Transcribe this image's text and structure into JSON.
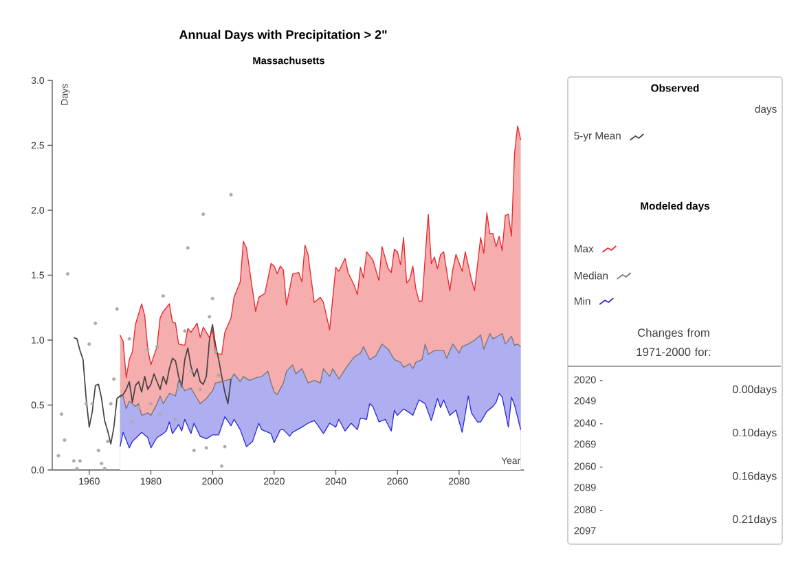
{
  "chart_data": {
    "type": "area",
    "title": "Annual Days with Precipitation > 2\"",
    "subtitle": "Massachusetts",
    "xlabel": "Year",
    "ylabel": "Days",
    "xlim": [
      1948,
      2101
    ],
    "xticks": [
      1960,
      1980,
      2000,
      2020,
      2040,
      2060,
      2080
    ],
    "ylim": [
      0,
      3
    ],
    "yticks": [
      {
        "value": 0,
        "label": "0.0"
      },
      {
        "value": 0.5,
        "label": "0.5"
      },
      {
        "value": 1,
        "label": "1.0"
      },
      {
        "value": 1.5,
        "label": "1.5"
      },
      {
        "value": 2,
        "label": "2.0"
      },
      {
        "value": 2.5,
        "label": "2.5"
      },
      {
        "value": 3,
        "label": "3.0"
      }
    ],
    "legend": "right",
    "annotations": [
      "Observed",
      "days",
      "Modeled days",
      "Changes from 1971-2000 for:",
      "2020 - 2049",
      "0.00days",
      "2040 - 2069",
      "0.10days",
      "2060 - 2089",
      "0.16days",
      "2080 - 2097",
      "0.21days"
    ],
    "series": [
      {
        "type": "scatter",
        "marker": "circle",
        "color": "#aaaaaa",
        "x": [
          1950,
          1951,
          1952,
          1953,
          1955,
          1956,
          1957,
          1959,
          1960,
          1961,
          1962,
          1963,
          1964,
          1965,
          1966,
          1967,
          1968,
          1969,
          1973,
          1974,
          1976,
          1979,
          1980,
          1982,
          1983,
          1984,
          1988,
          1989,
          1991,
          1992,
          1993,
          1994,
          1996,
          1997,
          1998,
          1999,
          2000,
          2001,
          2002,
          2003,
          2004,
          2006
        ],
        "values": [
          0.11,
          0.43,
          0.23,
          1.51,
          0.07,
          0.01,
          0.07,
          0.51,
          0.97,
          0.51,
          1.13,
          0.15,
          0.05,
          0.01,
          0.22,
          0.51,
          0.7,
          1.24,
          1.01,
          0.37,
          0.48,
          0.93,
          0.51,
          0.95,
          0.43,
          1.34,
          0.39,
          0.63,
          1.07,
          1.71,
          0.76,
          0.15,
          0.62,
          1.97,
          0.17,
          1.18,
          1.32,
          0.91,
          0.73,
          0.03,
          0.18,
          2.12
        ]
      },
      {
        "type": "line",
        "name": "5-yr Mean",
        "color": "#444444",
        "x": [
          1955,
          1956,
          1957,
          1958,
          1959,
          1960,
          1961,
          1962,
          1963,
          1964,
          1965,
          1966,
          1967,
          1968,
          1969,
          1970,
          1971,
          1972,
          1973,
          1974,
          1975,
          1976,
          1977,
          1978,
          1979,
          1980,
          1981,
          1982,
          1983,
          1984,
          1985,
          1986,
          1987,
          1988,
          1989,
          1990,
          1991,
          1992,
          1993,
          1994,
          1995,
          1996,
          1997,
          1998,
          1999,
          2000,
          2001,
          2002,
          2003,
          2004,
          2005,
          2006
        ],
        "values": [
          1.02,
          1.01,
          0.92,
          0.85,
          0.55,
          0.33,
          0.45,
          0.65,
          0.66,
          0.55,
          0.38,
          0.3,
          0.2,
          0.33,
          0.55,
          0.57,
          0.58,
          0.62,
          0.68,
          0.52,
          0.65,
          0.68,
          0.6,
          0.72,
          0.62,
          0.66,
          0.74,
          0.68,
          0.62,
          0.72,
          0.66,
          0.78,
          0.86,
          0.84,
          0.72,
          0.64,
          0.85,
          0.94,
          0.8,
          0.72,
          0.78,
          0.68,
          0.66,
          0.72,
          1.0,
          1.12,
          0.96,
          0.85,
          0.72,
          0.6,
          0.51,
          0.7
        ]
      },
      {
        "name": "Max",
        "color": "#e8262b",
        "x": [
          1970,
          1971,
          1972,
          1973,
          1974,
          1975,
          1977,
          1978,
          1979,
          1980,
          1982,
          1983,
          1984,
          1986,
          1987,
          1988,
          1989,
          1991,
          1992,
          1993,
          1995,
          1996,
          1997,
          1999,
          2000,
          2001,
          2003,
          2004,
          2006,
          2007,
          2009,
          2010,
          2011,
          2014,
          2015,
          2017,
          2019,
          2020,
          2021,
          2022,
          2023,
          2024,
          2026,
          2028,
          2029,
          2030,
          2031,
          2033,
          2035,
          2036,
          2038,
          2040,
          2041,
          2043,
          2044,
          2046,
          2047,
          2048,
          2049,
          2050,
          2052,
          2054,
          2055,
          2057,
          2058,
          2059,
          2060,
          2061,
          2062,
          2063,
          2064,
          2065,
          2066,
          2067,
          2068,
          2070,
          2071,
          2072,
          2073,
          2074,
          2075,
          2077,
          2078,
          2079,
          2081,
          2082,
          2084,
          2085,
          2087,
          2088,
          2089,
          2090,
          2091,
          2092,
          2093,
          2094,
          2095,
          2096,
          2097,
          2098,
          2099,
          2100
        ],
        "values": [
          1.04,
          0.99,
          0.71,
          0.85,
          0.91,
          1.12,
          1.28,
          1.19,
          0.93,
          0.81,
          0.95,
          1.17,
          1.22,
          1.28,
          1.14,
          1.13,
          0.97,
          0.96,
          1.09,
          1.06,
          1.13,
          1.02,
          1.1,
          1.02,
          1.08,
          0.9,
          0.89,
          1.06,
          1.17,
          1.33,
          1.45,
          1.76,
          1.71,
          1.22,
          1.33,
          1.36,
          1.59,
          1.57,
          1.51,
          1.57,
          1.54,
          1.27,
          1.51,
          1.52,
          1.45,
          1.73,
          1.66,
          1.29,
          1.33,
          1.29,
          1.08,
          1.56,
          1.53,
          1.63,
          1.52,
          1.42,
          1.35,
          1.56,
          1.48,
          1.68,
          1.62,
          1.46,
          1.72,
          1.55,
          1.52,
          1.7,
          1.68,
          1.58,
          1.79,
          1.44,
          1.47,
          1.57,
          1.39,
          1.3,
          1.3,
          1.97,
          1.59,
          1.64,
          1.55,
          1.66,
          1.68,
          1.38,
          1.55,
          1.66,
          1.53,
          1.68,
          1.47,
          1.38,
          1.79,
          1.67,
          1.98,
          1.82,
          1.82,
          1.72,
          1.8,
          1.69,
          1.96,
          1.97,
          1.8,
          2.44,
          2.65,
          2.54
        ]
      },
      {
        "name": "Median",
        "color": "#777777",
        "x": [
          1970,
          1971,
          1972,
          1973,
          1975,
          1976,
          1977,
          1979,
          1980,
          1982,
          1983,
          1984,
          1986,
          1988,
          1989,
          1991,
          1993,
          1995,
          1996,
          1998,
          2000,
          2001,
          2003,
          2006,
          2007,
          2009,
          2010,
          2012,
          2014,
          2016,
          2018,
          2019,
          2020,
          2021,
          2023,
          2024,
          2026,
          2027,
          2029,
          2031,
          2033,
          2035,
          2036,
          2038,
          2039,
          2041,
          2044,
          2046,
          2048,
          2049,
          2051,
          2053,
          2055,
          2057,
          2059,
          2061,
          2062,
          2064,
          2065,
          2066,
          2068,
          2069,
          2070,
          2072,
          2075,
          2076,
          2077,
          2078,
          2080,
          2081,
          2083,
          2085,
          2087,
          2088,
          2090,
          2091,
          2094,
          2095,
          2097,
          2098,
          2099,
          2100
        ],
        "values": [
          0.56,
          0.57,
          0.47,
          0.53,
          0.49,
          0.51,
          0.42,
          0.44,
          0.42,
          0.51,
          0.57,
          0.51,
          0.59,
          0.57,
          0.69,
          0.61,
          0.63,
          0.55,
          0.51,
          0.55,
          0.61,
          0.67,
          0.68,
          0.7,
          0.74,
          0.68,
          0.72,
          0.69,
          0.71,
          0.72,
          0.76,
          0.67,
          0.6,
          0.58,
          0.67,
          0.76,
          0.81,
          0.74,
          0.78,
          0.67,
          0.69,
          0.67,
          0.78,
          0.72,
          0.78,
          0.7,
          0.81,
          0.87,
          0.9,
          0.95,
          0.85,
          0.88,
          0.97,
          0.93,
          0.85,
          0.83,
          0.79,
          0.82,
          0.78,
          0.83,
          0.85,
          0.97,
          0.89,
          0.92,
          0.92,
          0.86,
          0.92,
          0.97,
          0.9,
          0.95,
          0.97,
          1.0,
          1.04,
          0.93,
          1.05,
          1.01,
          1.05,
          0.97,
          1.03,
          0.96,
          0.97,
          0.95
        ]
      },
      {
        "name": "Min",
        "color": "#2b2bd8",
        "x": [
          1970,
          1971,
          1973,
          1974,
          1977,
          1979,
          1980,
          1982,
          1984,
          1985,
          1986,
          1987,
          1989,
          1990,
          1991,
          1993,
          1994,
          1996,
          1998,
          2000,
          2002,
          2004,
          2006,
          2007,
          2009,
          2011,
          2013,
          2015,
          2016,
          2018,
          2019,
          2020,
          2022,
          2023,
          2025,
          2026,
          2029,
          2031,
          2033,
          2034,
          2036,
          2038,
          2040,
          2041,
          2043,
          2045,
          2047,
          2048,
          2050,
          2051,
          2052,
          2054,
          2056,
          2058,
          2059,
          2060,
          2062,
          2064,
          2065,
          2067,
          2069,
          2071,
          2073,
          2074,
          2075,
          2077,
          2079,
          2081,
          2083,
          2084,
          2086,
          2087,
          2089,
          2091,
          2092,
          2093,
          2094,
          2096,
          2097,
          2098,
          2100
        ],
        "values": [
          0.18,
          0.29,
          0.17,
          0.22,
          0.29,
          0.25,
          0.17,
          0.25,
          0.28,
          0.3,
          0.37,
          0.28,
          0.35,
          0.3,
          0.39,
          0.28,
          0.36,
          0.26,
          0.24,
          0.27,
          0.27,
          0.41,
          0.34,
          0.39,
          0.31,
          0.18,
          0.22,
          0.36,
          0.31,
          0.29,
          0.28,
          0.21,
          0.31,
          0.31,
          0.26,
          0.29,
          0.33,
          0.36,
          0.38,
          0.35,
          0.28,
          0.36,
          0.33,
          0.39,
          0.3,
          0.36,
          0.31,
          0.4,
          0.39,
          0.51,
          0.49,
          0.37,
          0.39,
          0.3,
          0.46,
          0.42,
          0.47,
          0.44,
          0.42,
          0.54,
          0.51,
          0.38,
          0.55,
          0.48,
          0.54,
          0.42,
          0.46,
          0.29,
          0.57,
          0.44,
          0.37,
          0.37,
          0.45,
          0.49,
          0.52,
          0.59,
          0.56,
          0.33,
          0.56,
          0.5,
          0.31
        ]
      }
    ]
  }
}
